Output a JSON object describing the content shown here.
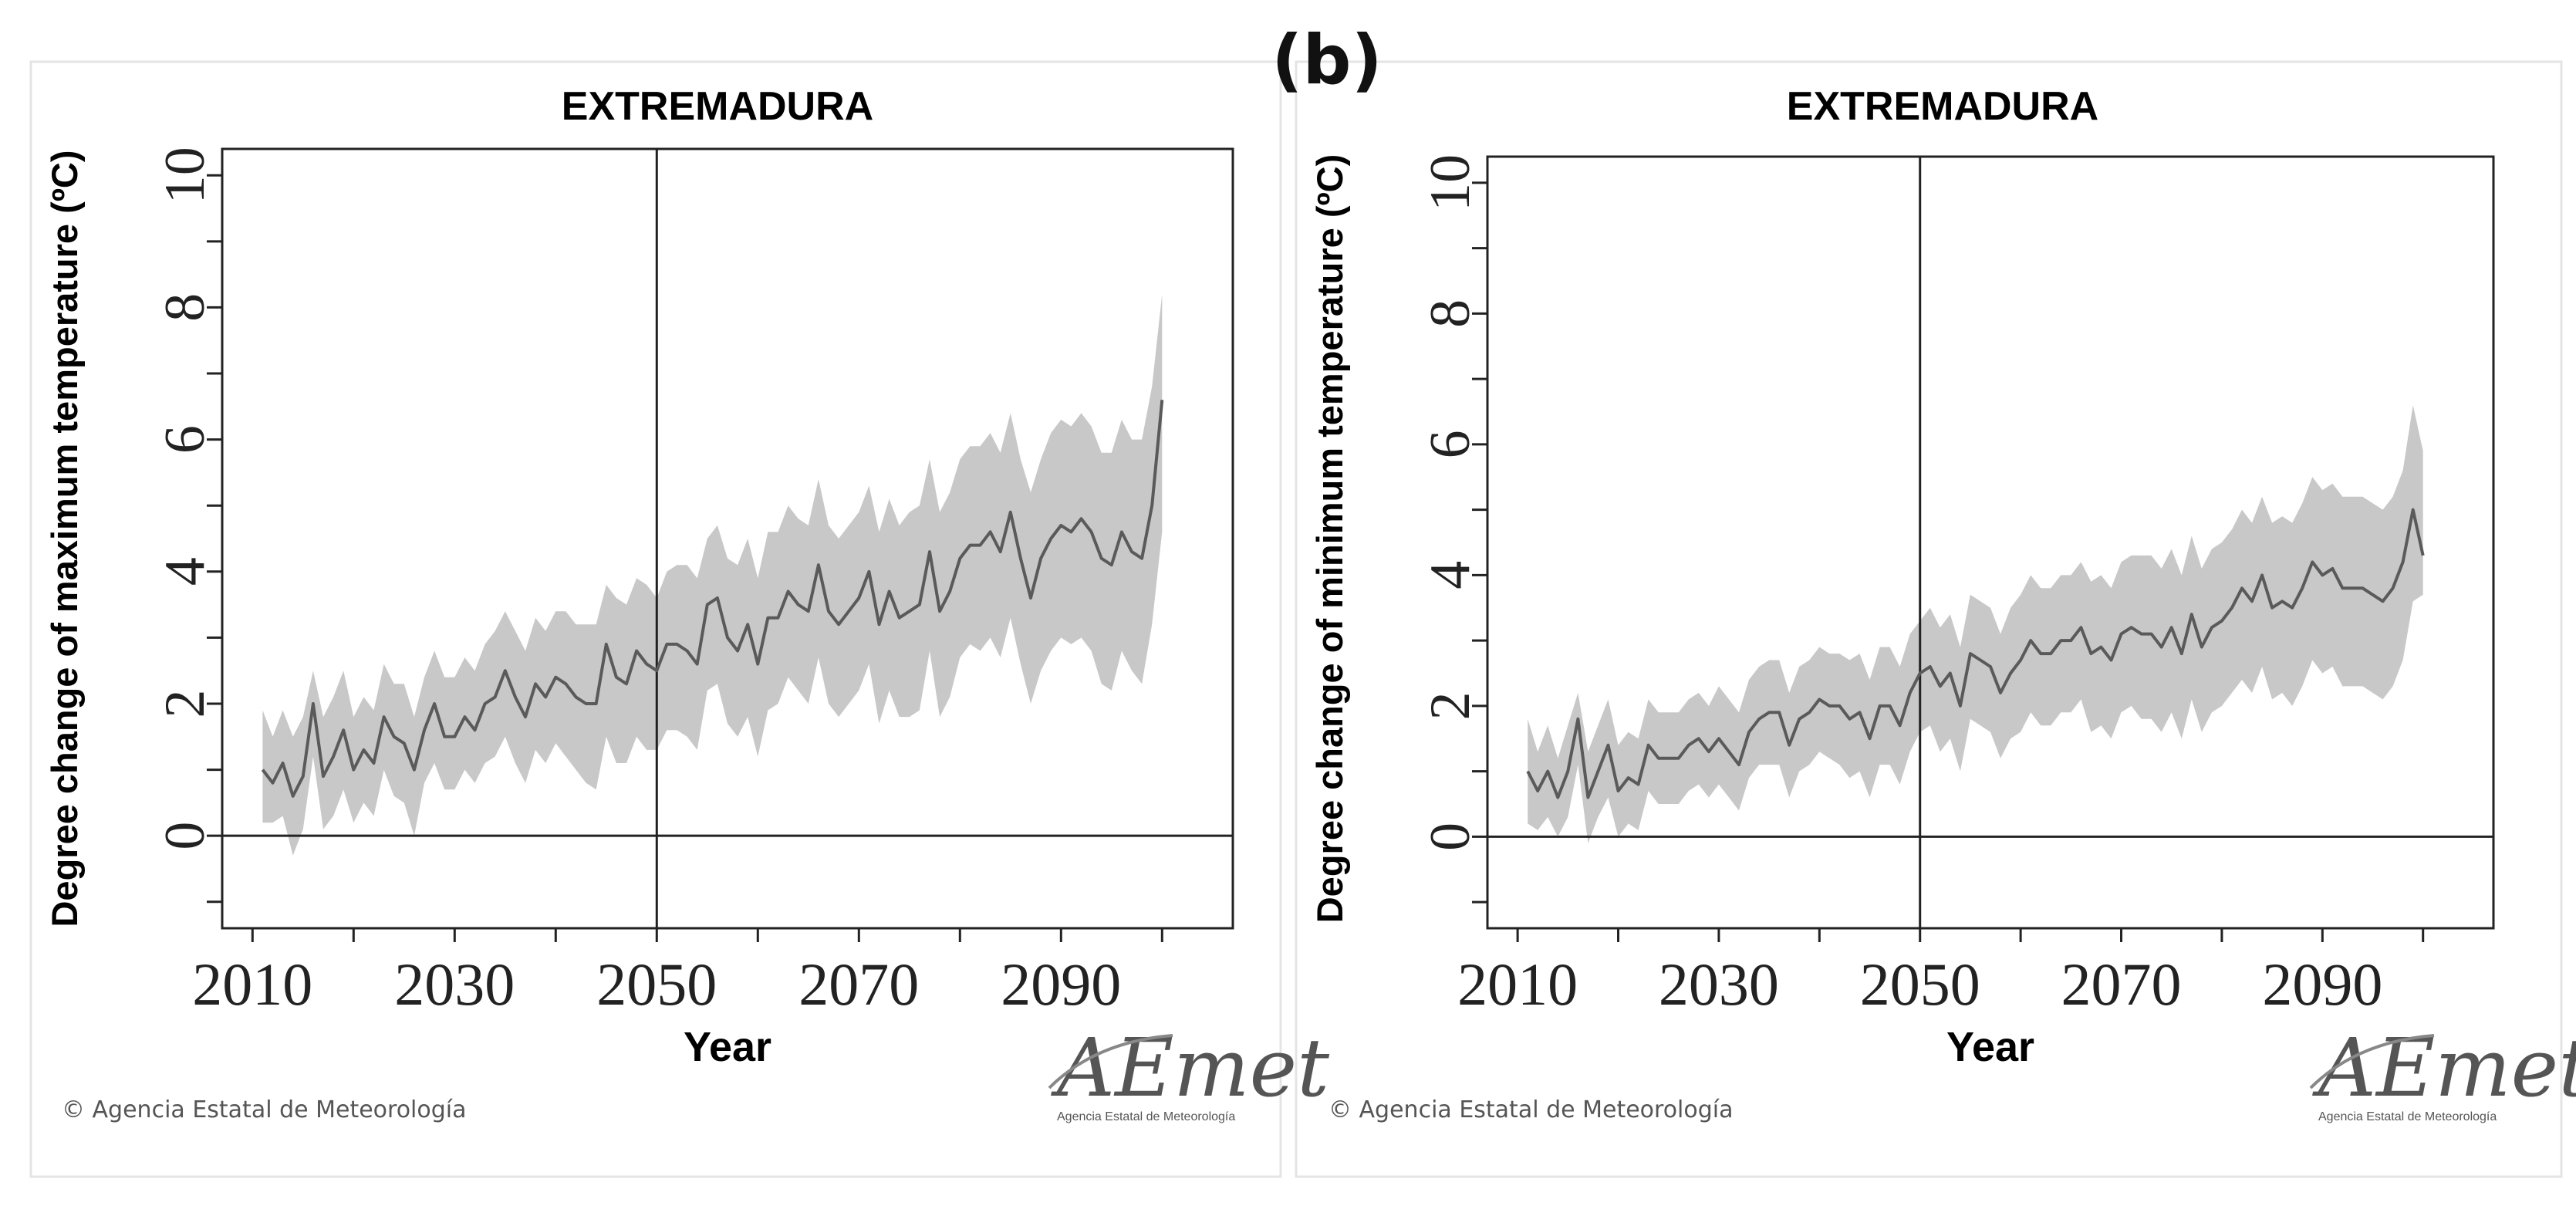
{
  "figure": {
    "panel_label": "(b)",
    "credit": "© Agencia Estatal de Meteorología",
    "logo_text": "AEmet",
    "logo_subtext": "Agencia Estatal de Meteorología"
  },
  "colors": {
    "band": "#c8c8c8",
    "line": "#5a5a5a",
    "axis": "#222222",
    "frame": "#e4e4e4"
  },
  "chart_data": [
    {
      "type": "line",
      "title": "EXTREMADURA",
      "xlabel": "Year",
      "ylabel": "Degree change of maximum temperature (ºC)",
      "xlim": [
        2007,
        2107
      ],
      "ylim": [
        -1.4,
        10.4
      ],
      "xticks": [
        2010,
        2030,
        2050,
        2070,
        2090
      ],
      "xminor": [
        2010,
        2020,
        2030,
        2040,
        2050,
        2060,
        2070,
        2080,
        2090,
        2100
      ],
      "yticks": [
        0,
        2,
        4,
        6,
        8,
        10
      ],
      "yminor": [
        -1,
        0,
        1,
        2,
        3,
        4,
        5,
        6,
        7,
        8,
        9,
        10
      ],
      "vline_x": 2050,
      "hline_y": 0,
      "x": [
        2011,
        2012,
        2013,
        2014,
        2015,
        2016,
        2017,
        2018,
        2019,
        2020,
        2021,
        2022,
        2023,
        2024,
        2025,
        2026,
        2027,
        2028,
        2029,
        2030,
        2031,
        2032,
        2033,
        2034,
        2035,
        2036,
        2037,
        2038,
        2039,
        2040,
        2041,
        2042,
        2043,
        2044,
        2045,
        2046,
        2047,
        2048,
        2049,
        2050,
        2051,
        2052,
        2053,
        2054,
        2055,
        2056,
        2057,
        2058,
        2059,
        2060,
        2061,
        2062,
        2063,
        2064,
        2065,
        2066,
        2067,
        2068,
        2069,
        2070,
        2071,
        2072,
        2073,
        2074,
        2075,
        2076,
        2077,
        2078,
        2079,
        2080,
        2081,
        2082,
        2083,
        2084,
        2085,
        2086,
        2087,
        2088,
        2089,
        2090,
        2091,
        2092,
        2093,
        2094,
        2095,
        2096,
        2097,
        2098,
        2099,
        2100
      ],
      "series": [
        {
          "values": [
            1.0,
            0.8,
            1.1,
            0.6,
            0.9,
            2.0,
            0.9,
            1.2,
            1.6,
            1.0,
            1.3,
            1.1,
            1.8,
            1.5,
            1.4,
            1.0,
            1.6,
            2.0,
            1.5,
            1.5,
            1.8,
            1.6,
            2.0,
            2.1,
            2.5,
            2.1,
            1.8,
            2.3,
            2.1,
            2.4,
            2.3,
            2.1,
            2.0,
            2.0,
            2.9,
            2.4,
            2.3,
            2.8,
            2.6,
            2.5,
            2.9,
            2.9,
            2.8,
            2.6,
            3.5,
            3.6,
            3.0,
            2.8,
            3.2,
            2.6,
            3.3,
            3.3,
            3.7,
            3.5,
            3.4,
            4.1,
            3.4,
            3.2,
            3.4,
            3.6,
            4.0,
            3.2,
            3.7,
            3.3,
            3.4,
            3.5,
            4.3,
            3.4,
            3.7,
            4.2,
            4.4,
            4.4,
            4.6,
            4.3,
            4.9,
            4.2,
            3.6,
            4.2,
            4.5,
            4.7,
            4.6,
            4.8,
            4.6,
            4.2,
            4.1,
            4.6,
            4.3,
            4.2,
            5.0,
            6.6
          ]
        }
      ],
      "band_low": [
        0.2,
        0.2,
        0.3,
        -0.3,
        0.1,
        1.2,
        0.1,
        0.3,
        0.7,
        0.2,
        0.5,
        0.3,
        1.0,
        0.6,
        0.5,
        0.0,
        0.8,
        1.1,
        0.7,
        0.7,
        1.0,
        0.8,
        1.1,
        1.2,
        1.5,
        1.1,
        0.8,
        1.3,
        1.1,
        1.4,
        1.2,
        1.0,
        0.8,
        0.7,
        1.5,
        1.1,
        1.1,
        1.5,
        1.3,
        1.3,
        1.6,
        1.6,
        1.5,
        1.3,
        2.2,
        2.3,
        1.7,
        1.5,
        1.8,
        1.2,
        1.9,
        2.0,
        2.4,
        2.2,
        2.0,
        2.7,
        2.0,
        1.8,
        2.0,
        2.2,
        2.6,
        1.7,
        2.2,
        1.8,
        1.8,
        1.9,
        2.8,
        1.8,
        2.1,
        2.7,
        2.9,
        2.8,
        3.0,
        2.7,
        3.3,
        2.6,
        2.0,
        2.5,
        2.8,
        3.0,
        2.9,
        3.0,
        2.8,
        2.3,
        2.2,
        2.8,
        2.5,
        2.3,
        3.2,
        4.6
      ],
      "band_high": [
        1.9,
        1.5,
        1.9,
        1.5,
        1.8,
        2.5,
        1.8,
        2.1,
        2.5,
        1.8,
        2.1,
        1.9,
        2.6,
        2.3,
        2.3,
        1.8,
        2.4,
        2.8,
        2.4,
        2.4,
        2.7,
        2.5,
        2.9,
        3.1,
        3.4,
        3.1,
        2.8,
        3.3,
        3.1,
        3.4,
        3.4,
        3.2,
        3.2,
        3.2,
        3.8,
        3.6,
        3.5,
        3.9,
        3.8,
        3.6,
        4.0,
        4.1,
        4.1,
        3.9,
        4.5,
        4.7,
        4.2,
        4.1,
        4.5,
        3.9,
        4.6,
        4.6,
        5.0,
        4.8,
        4.7,
        5.4,
        4.7,
        4.5,
        4.7,
        4.9,
        5.3,
        4.6,
        5.1,
        4.7,
        4.9,
        5.0,
        5.7,
        4.9,
        5.2,
        5.7,
        5.9,
        5.9,
        6.1,
        5.8,
        6.4,
        5.7,
        5.2,
        5.7,
        6.1,
        6.3,
        6.2,
        6.4,
        6.2,
        5.8,
        5.8,
        6.3,
        6.0,
        6.0,
        6.8,
        8.2
      ]
    },
    {
      "type": "line",
      "title": "EXTREMADURA",
      "xlabel": "Year",
      "ylabel": "Degree change of minimum temperature (ºC)",
      "xlim": [
        2007,
        2107
      ],
      "ylim": [
        -1.4,
        10.4
      ],
      "xticks": [
        2010,
        2030,
        2050,
        2070,
        2090
      ],
      "xminor": [
        2010,
        2020,
        2030,
        2040,
        2050,
        2060,
        2070,
        2080,
        2090,
        2100
      ],
      "yticks": [
        0,
        2,
        4,
        6,
        8,
        10
      ],
      "yminor": [
        -1,
        0,
        1,
        2,
        3,
        4,
        5,
        6,
        7,
        8,
        9,
        10
      ],
      "vline_x": 2050,
      "hline_y": 0,
      "x": [
        2011,
        2012,
        2013,
        2014,
        2015,
        2016,
        2017,
        2018,
        2019,
        2020,
        2021,
        2022,
        2023,
        2024,
        2025,
        2026,
        2027,
        2028,
        2029,
        2030,
        2031,
        2032,
        2033,
        2034,
        2035,
        2036,
        2037,
        2038,
        2039,
        2040,
        2041,
        2042,
        2043,
        2044,
        2045,
        2046,
        2047,
        2048,
        2049,
        2050,
        2051,
        2052,
        2053,
        2054,
        2055,
        2056,
        2057,
        2058,
        2059,
        2060,
        2061,
        2062,
        2063,
        2064,
        2065,
        2066,
        2067,
        2068,
        2069,
        2070,
        2071,
        2072,
        2073,
        2074,
        2075,
        2076,
        2077,
        2078,
        2079,
        2080,
        2081,
        2082,
        2083,
        2084,
        2085,
        2086,
        2087,
        2088,
        2089,
        2090,
        2091,
        2092,
        2093,
        2094,
        2095,
        2096,
        2097,
        2098,
        2099,
        2100
      ],
      "series": [
        {
          "values": [
            1.0,
            0.7,
            1.0,
            0.6,
            1.0,
            1.8,
            0.6,
            1.0,
            1.4,
            0.7,
            0.9,
            0.8,
            1.4,
            1.2,
            1.2,
            1.2,
            1.4,
            1.5,
            1.3,
            1.5,
            1.3,
            1.1,
            1.6,
            1.8,
            1.9,
            1.9,
            1.4,
            1.8,
            1.9,
            2.1,
            2.0,
            2.0,
            1.8,
            1.9,
            1.5,
            2.0,
            2.0,
            1.7,
            2.2,
            2.5,
            2.6,
            2.3,
            2.5,
            2.0,
            2.8,
            2.7,
            2.6,
            2.2,
            2.5,
            2.7,
            3.0,
            2.8,
            2.8,
            3.0,
            3.0,
            3.2,
            2.8,
            2.9,
            2.7,
            3.1,
            3.2,
            3.1,
            3.1,
            2.9,
            3.2,
            2.8,
            3.4,
            2.9,
            3.2,
            3.3,
            3.5,
            3.8,
            3.6,
            4.0,
            3.5,
            3.6,
            3.5,
            3.8,
            4.2,
            4.0,
            4.1,
            3.8,
            3.8,
            3.8,
            3.7,
            3.6,
            3.8,
            4.2,
            5.0,
            4.3
          ]
        }
      ],
      "band_low": [
        0.2,
        0.1,
        0.3,
        0.0,
        0.3,
        1.1,
        -0.1,
        0.3,
        0.6,
        0.0,
        0.2,
        0.1,
        0.7,
        0.5,
        0.5,
        0.5,
        0.7,
        0.8,
        0.6,
        0.8,
        0.6,
        0.4,
        0.9,
        1.1,
        1.1,
        1.1,
        0.6,
        1.0,
        1.1,
        1.3,
        1.2,
        1.1,
        0.9,
        1.0,
        0.6,
        1.1,
        1.1,
        0.8,
        1.3,
        1.6,
        1.7,
        1.3,
        1.5,
        1.0,
        1.8,
        1.7,
        1.6,
        1.2,
        1.5,
        1.6,
        1.9,
        1.7,
        1.7,
        1.9,
        1.9,
        2.1,
        1.6,
        1.7,
        1.5,
        1.9,
        2.0,
        1.8,
        1.8,
        1.6,
        1.9,
        1.5,
        2.1,
        1.6,
        1.9,
        2.0,
        2.2,
        2.4,
        2.2,
        2.6,
        2.1,
        2.2,
        2.0,
        2.3,
        2.7,
        2.5,
        2.6,
        2.3,
        2.3,
        2.3,
        2.2,
        2.1,
        2.3,
        2.7,
        3.6,
        3.7
      ],
      "band_high": [
        1.8,
        1.3,
        1.7,
        1.2,
        1.7,
        2.2,
        1.3,
        1.7,
        2.1,
        1.4,
        1.6,
        1.5,
        2.1,
        1.9,
        1.9,
        1.9,
        2.1,
        2.2,
        2.0,
        2.3,
        2.1,
        1.9,
        2.4,
        2.6,
        2.7,
        2.7,
        2.2,
        2.6,
        2.7,
        2.9,
        2.8,
        2.8,
        2.7,
        2.8,
        2.4,
        2.9,
        2.9,
        2.6,
        3.1,
        3.3,
        3.5,
        3.2,
        3.4,
        2.9,
        3.7,
        3.6,
        3.5,
        3.1,
        3.5,
        3.7,
        4.0,
        3.8,
        3.8,
        4.0,
        4.0,
        4.2,
        3.9,
        4.0,
        3.8,
        4.2,
        4.3,
        4.3,
        4.3,
        4.1,
        4.4,
        4.0,
        4.6,
        4.1,
        4.4,
        4.5,
        4.7,
        5.0,
        4.8,
        5.2,
        4.8,
        4.9,
        4.8,
        5.1,
        5.5,
        5.3,
        5.4,
        5.2,
        5.2,
        5.2,
        5.1,
        5.0,
        5.2,
        5.6,
        6.6,
        5.9
      ]
    }
  ]
}
